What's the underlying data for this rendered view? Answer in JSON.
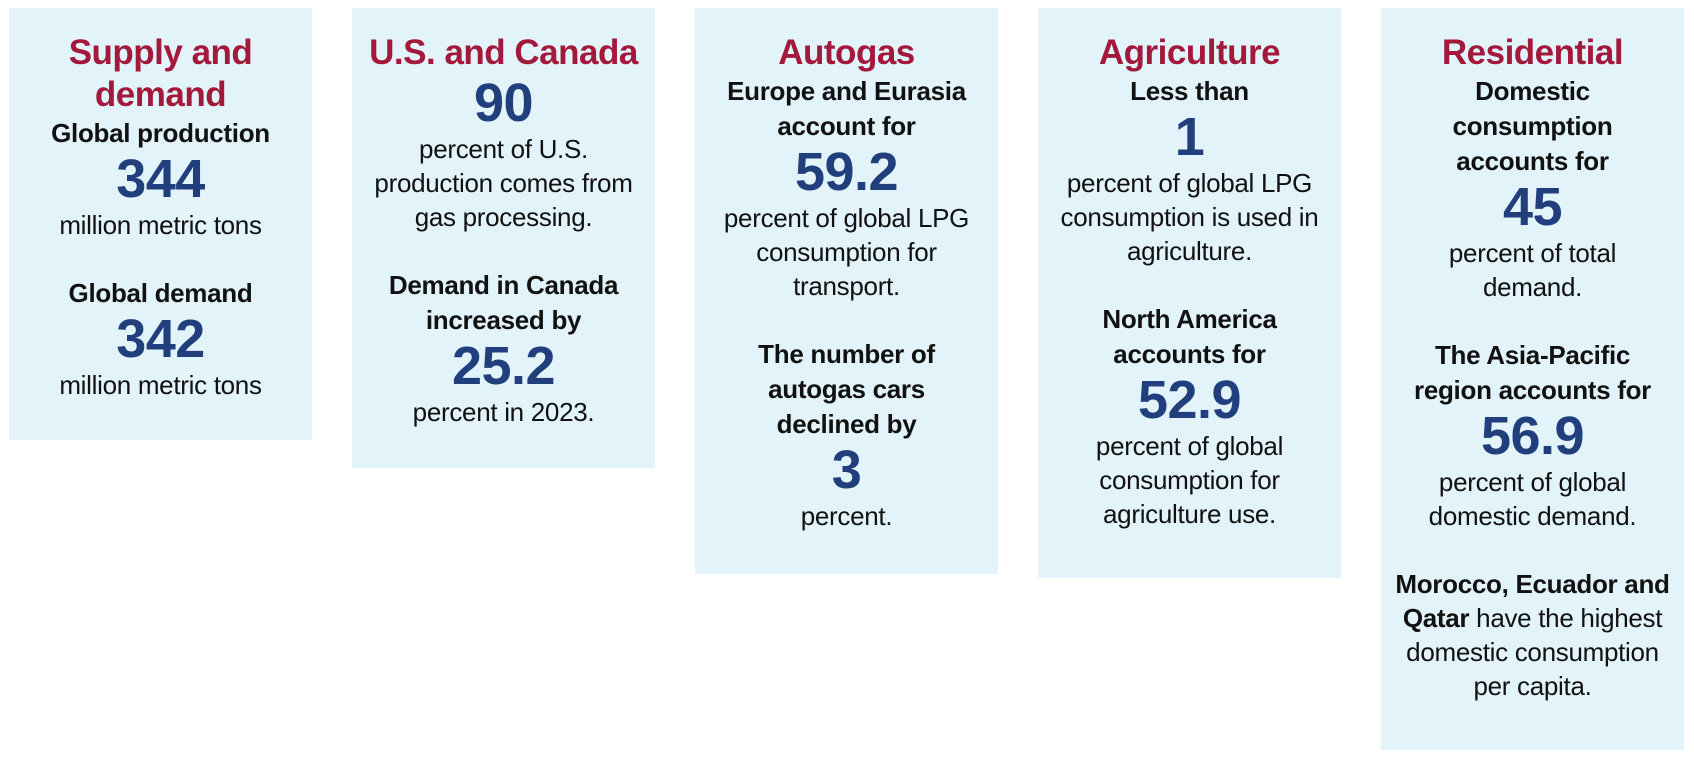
{
  "columns": [
    {
      "title": "Supply and demand",
      "stats": [
        {
          "lead": "Global production",
          "value": "344",
          "desc": "million metric tons"
        },
        {
          "lead": "Global demand",
          "value": "342",
          "desc": "million metric tons"
        }
      ]
    },
    {
      "title": "U.S. and Canada",
      "stats": [
        {
          "value": "90",
          "desc": "percent of U.S. production comes from gas processing."
        },
        {
          "lead": "Demand in Canada increased by",
          "value": "25.2",
          "desc": "percent in 2023."
        }
      ]
    },
    {
      "title": "Autogas",
      "stats": [
        {
          "lead": "Europe and Eurasia account for",
          "value": "59.2",
          "desc": "percent of global LPG consumption for transport."
        },
        {
          "lead": "The number of autogas cars declined by",
          "value": "3",
          "desc": "percent."
        }
      ]
    },
    {
      "title": "Agriculture",
      "stats": [
        {
          "lead": "Less than",
          "value": "1",
          "desc": "percent of global LPG consumption is used in agriculture."
        },
        {
          "lead": "North America accounts for",
          "value": "52.9",
          "desc": "percent of global consumption for agriculture use."
        }
      ]
    },
    {
      "title": "Residential",
      "stats": [
        {
          "lead": "Domestic consumption accounts for",
          "value": "45",
          "desc": "percent of total demand."
        },
        {
          "lead": "The Asia-Pacific region accounts for",
          "value": "56.9",
          "desc": "percent of global domestic demand."
        }
      ],
      "note": {
        "bold": "Morocco, Ecuador and Qatar",
        "rest": " have the highest domestic consumption per capita."
      }
    }
  ],
  "colors": {
    "panel_background": "#e2f3f9",
    "title": "#a3193c",
    "number": "#213f7c",
    "text": "#111111"
  }
}
